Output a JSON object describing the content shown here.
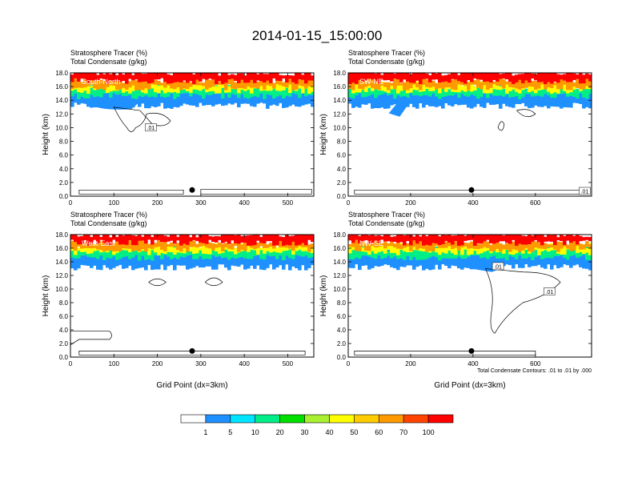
{
  "figure_title": "2014-01-15_15:00:00",
  "panel_title_1": "Stratosphere Tracer   (%)",
  "panel_title_2": "Total Condensate   (g/kg)",
  "y_axis_label": "Height (km)",
  "x_axis_label": "Grid Point (dx=3km)",
  "contour_note": "Total Condensate Contours: .01 to .01 by .000",
  "colors": {
    "background": "#ffffff",
    "levels": [
      "#ffffff",
      "#1e90ff",
      "#00e5ff",
      "#00ee88",
      "#00e000",
      "#a8f030",
      "#ffff00",
      "#ffcc00",
      "#ff9900",
      "#ff4400",
      "#ff0000"
    ],
    "marker": "#000000",
    "label_text": "#ffffff"
  },
  "colorbar": {
    "labels": [
      "1",
      "5",
      "10",
      "20",
      "30",
      "40",
      "50",
      "60",
      "70",
      "100"
    ]
  },
  "chart_data": [
    {
      "type": "heatmap",
      "name": "South-North",
      "xlim": [
        0,
        560
      ],
      "ylim": [
        0,
        18
      ],
      "xticks": [
        0,
        100,
        200,
        300,
        400,
        500
      ],
      "yticks": [
        0,
        2,
        4,
        6,
        8,
        10,
        12,
        14,
        16,
        18
      ],
      "marker_x": 280,
      "contour_labels": [
        {
          "text": ".01",
          "x": 185,
          "y": 10.0
        }
      ],
      "tracer_band": [
        {
          "level": 1,
          "bottom": 13.2,
          "top": 15.6
        },
        {
          "level": 3,
          "bottom": 14.6,
          "top": 16.0
        },
        {
          "level": 6,
          "bottom": 15.4,
          "top": 16.4
        },
        {
          "level": 8,
          "bottom": 15.9,
          "top": 16.9
        },
        {
          "level": 10,
          "bottom": 16.8,
          "top": 18.0
        }
      ]
    },
    {
      "type": "heatmap",
      "name": "SW-NE",
      "xlim": [
        0,
        780
      ],
      "ylim": [
        0,
        18
      ],
      "xticks": [
        0,
        200,
        400,
        600
      ],
      "yticks": [
        0,
        2,
        4,
        6,
        8,
        10,
        12,
        14,
        16,
        18
      ],
      "marker_x": 395,
      "contour_labels": [
        {
          "text": ".01",
          "x": 758,
          "y": 0.7
        }
      ],
      "tracer_band": [
        {
          "level": 1,
          "bottom": 13.2,
          "top": 15.6
        },
        {
          "level": 3,
          "bottom": 14.6,
          "top": 16.0
        },
        {
          "level": 6,
          "bottom": 15.4,
          "top": 16.4
        },
        {
          "level": 8,
          "bottom": 15.9,
          "top": 16.9
        },
        {
          "level": 10,
          "bottom": 16.8,
          "top": 18.0
        }
      ]
    },
    {
      "type": "heatmap",
      "name": "West-East",
      "xlim": [
        0,
        560
      ],
      "ylim": [
        0,
        18
      ],
      "xticks": [
        0,
        100,
        200,
        300,
        400,
        500
      ],
      "yticks": [
        0,
        2,
        4,
        6,
        8,
        10,
        12,
        14,
        16,
        18
      ],
      "marker_x": 280,
      "contour_labels": [],
      "tracer_band": [
        {
          "level": 1,
          "bottom": 13.2,
          "top": 15.6
        },
        {
          "level": 3,
          "bottom": 14.6,
          "top": 16.0
        },
        {
          "level": 6,
          "bottom": 15.4,
          "top": 16.4
        },
        {
          "level": 8,
          "bottom": 15.9,
          "top": 16.9
        },
        {
          "level": 10,
          "bottom": 16.8,
          "top": 18.0
        }
      ]
    },
    {
      "type": "heatmap",
      "name": "NW-SE",
      "xlim": [
        0,
        780
      ],
      "ylim": [
        0,
        18
      ],
      "xticks": [
        0,
        200,
        400,
        600
      ],
      "yticks": [
        0,
        2,
        4,
        6,
        8,
        10,
        12,
        14,
        16,
        18
      ],
      "marker_x": 395,
      "contour_labels": [
        {
          "text": ".01",
          "x": 480,
          "y": 13.3
        },
        {
          "text": ".01",
          "x": 645,
          "y": 9.6
        }
      ],
      "tracer_band": [
        {
          "level": 1,
          "bottom": 13.2,
          "top": 15.6
        },
        {
          "level": 3,
          "bottom": 14.6,
          "top": 16.0
        },
        {
          "level": 6,
          "bottom": 15.4,
          "top": 16.4
        },
        {
          "level": 8,
          "bottom": 15.9,
          "top": 16.9
        },
        {
          "level": 10,
          "bottom": 16.8,
          "top": 18.0
        }
      ]
    }
  ]
}
